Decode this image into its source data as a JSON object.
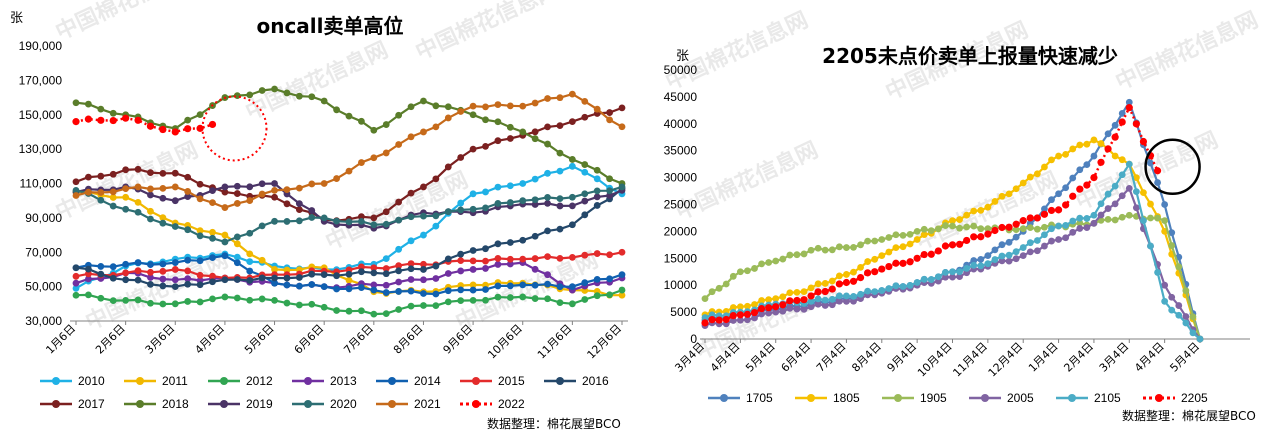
{
  "watermark": "中国棉花信息网",
  "chart_data": [
    {
      "type": "line",
      "title": "oncall卖单高位",
      "ylabel": "张",
      "ylim": [
        30000,
        190000
      ],
      "yticks": [
        "30,000",
        "50,000",
        "70,000",
        "90,000",
        "110,000",
        "130,000",
        "150,000",
        "170,000",
        "190,000"
      ],
      "categories": [
        "1月6日",
        "2月6日",
        "3月6日",
        "4月6日",
        "5月6日",
        "6月6日",
        "7月6日",
        "8月6日",
        "9月6日",
        "10月6日",
        "11月6日",
        "12月6日"
      ],
      "footer": "数据整理：棉花展望BCO",
      "series": [
        {
          "name": "2010",
          "color": "#1fb1e6",
          "values": [
            49000,
            62000,
            66000,
            69000,
            62000,
            60000,
            63000,
            80000,
            104000,
            110000,
            120000,
            104000
          ]
        },
        {
          "name": "2011",
          "color": "#f1b800",
          "values": [
            105000,
            102000,
            87000,
            80000,
            60000,
            61000,
            47000,
            47000,
            51000,
            52000,
            48000,
            45000
          ]
        },
        {
          "name": "2012",
          "color": "#31a552",
          "values": [
            45000,
            42000,
            40000,
            44000,
            42000,
            38000,
            34000,
            39000,
            42000,
            44000,
            40000,
            48000
          ]
        },
        {
          "name": "2013",
          "color": "#7030a0",
          "values": [
            52000,
            58000,
            54000,
            55000,
            52000,
            50000,
            51000,
            54000,
            60000,
            64000,
            48000,
            55000
          ]
        },
        {
          "name": "2014",
          "color": "#1060b0",
          "values": [
            61000,
            63000,
            64000,
            68000,
            52000,
            50000,
            48000,
            46000,
            48000,
            51000,
            50000,
            57000
          ]
        },
        {
          "name": "2015",
          "color": "#e32b2b",
          "values": [
            56000,
            58000,
            60000,
            55000,
            57000,
            59000,
            61000,
            63000,
            65000,
            66000,
            67000,
            70000
          ]
        },
        {
          "name": "2016",
          "color": "#24486a",
          "values": [
            61000,
            54000,
            50000,
            54000,
            55000,
            57000,
            58000,
            60000,
            71000,
            77000,
            86000,
            107000
          ]
        },
        {
          "name": "2017",
          "color": "#7b2020",
          "values": [
            111000,
            118000,
            116000,
            105000,
            102000,
            89000,
            90000,
            108000,
            130000,
            138000,
            146000,
            154000
          ]
        },
        {
          "name": "2018",
          "color": "#5a7d2a",
          "values": [
            157000,
            150000,
            142000,
            160000,
            165000,
            158000,
            141000,
            158000,
            150000,
            140000,
            124000,
            110000
          ]
        },
        {
          "name": "2019",
          "color": "#4a3366",
          "values": [
            105000,
            108000,
            100000,
            108000,
            110000,
            88000,
            84000,
            93000,
            93000,
            98000,
            97000,
            106000
          ]
        },
        {
          "name": "2020",
          "color": "#2d6e73",
          "values": [
            106000,
            95000,
            85000,
            76000,
            88000,
            90000,
            86000,
            91000,
            95000,
            100000,
            102000,
            108000
          ]
        },
        {
          "name": "2021",
          "color": "#c66a1a",
          "values": [
            103000,
            107000,
            108000,
            96000,
            106000,
            110000,
            125000,
            140000,
            155000,
            155000,
            162000,
            143000
          ]
        },
        {
          "name": "2022",
          "color": "#ff0000",
          "dashed": true,
          "values": [
            146000,
            148000,
            140000,
            146000,
            null,
            null,
            null,
            null,
            null,
            null,
            null,
            null
          ]
        }
      ],
      "highlight_circle": "2022"
    },
    {
      "type": "line",
      "title": "2205未点价卖单上报量快速减少",
      "ylabel": "张",
      "ylim": [
        0,
        50000
      ],
      "yticks": [
        "0",
        "5000",
        "10000",
        "15000",
        "20000",
        "25000",
        "30000",
        "35000",
        "40000",
        "45000",
        "50000"
      ],
      "categories": [
        "3月4日",
        "4月4日",
        "5月4日",
        "6月4日",
        "7月4日",
        "8月4日",
        "9月4日",
        "10月4日",
        "11月4日",
        "12月4日",
        "1月4日",
        "2月4日",
        "3月4日",
        "4月4日",
        "5月4日"
      ],
      "footer": "数据整理：棉花展望BCO",
      "series": [
        {
          "name": "1705",
          "color": "#4f81bd",
          "values": [
            3500,
            4500,
            5500,
            6500,
            7500,
            9000,
            10500,
            12500,
            15500,
            20000,
            27000,
            34000,
            44000,
            25000,
            0
          ]
        },
        {
          "name": "1805",
          "color": "#f6c000",
          "values": [
            4500,
            6000,
            7500,
            9500,
            12000,
            15500,
            18500,
            22000,
            24500,
            29000,
            34000,
            37000,
            32500,
            20000,
            0
          ]
        },
        {
          "name": "1905",
          "color": "#9bbb59",
          "values": [
            7500,
            12500,
            14500,
            16500,
            17000,
            18500,
            20000,
            21000,
            20500,
            20500,
            21000,
            21500,
            23000,
            22000,
            0
          ]
        },
        {
          "name": "2005",
          "color": "#8064a2",
          "values": [
            2500,
            3500,
            5000,
            6000,
            7000,
            8500,
            10000,
            11500,
            13500,
            15500,
            18500,
            21500,
            28000,
            10000,
            0
          ]
        },
        {
          "name": "2105",
          "color": "#4bacc6",
          "values": [
            4000,
            5000,
            6500,
            7000,
            8000,
            9000,
            10500,
            12500,
            14000,
            17000,
            21000,
            23000,
            32500,
            7000,
            0
          ]
        },
        {
          "name": "2205",
          "color": "#ff0000",
          "dashed": true,
          "values": [
            3000,
            4500,
            6000,
            8000,
            10500,
            13000,
            15000,
            17500,
            19500,
            22000,
            24000,
            30000,
            43000,
            28000,
            null
          ]
        }
      ],
      "highlight_circle": "2205"
    }
  ]
}
